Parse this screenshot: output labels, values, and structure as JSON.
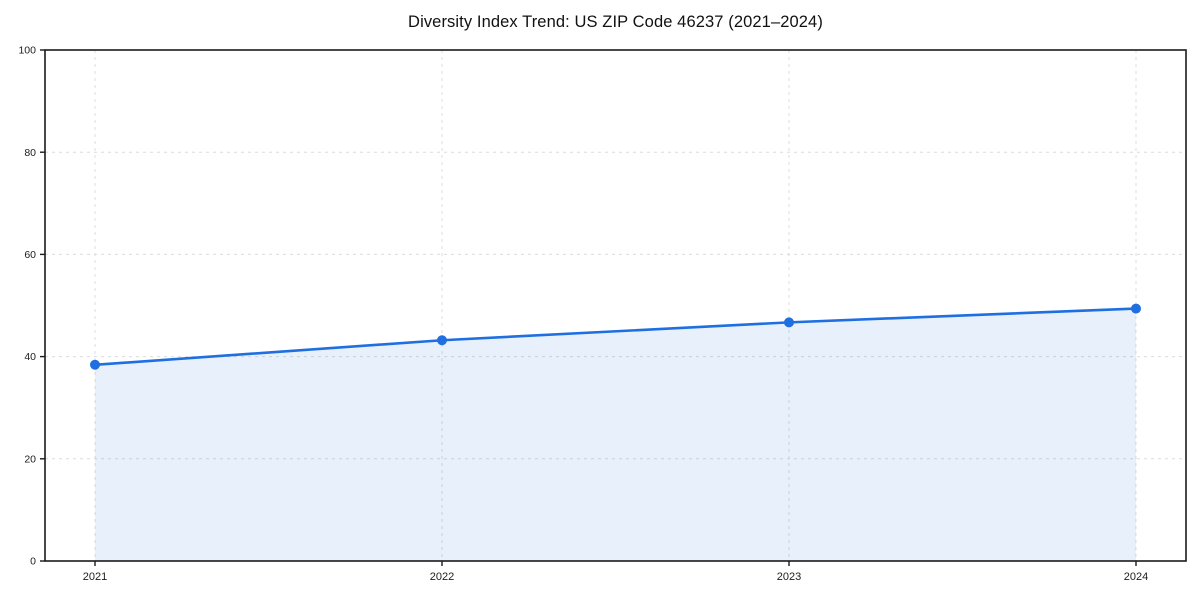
{
  "chart_data": {
    "type": "line",
    "title": "Diversity Index Trend: US ZIP Code 46237 (2021–2024)",
    "x": [
      "2021",
      "2022",
      "2023",
      "2024"
    ],
    "series": [
      {
        "name": "Diversity Index",
        "values": [
          38.4,
          43.2,
          46.7,
          49.4
        ]
      }
    ],
    "xlabel": "",
    "ylabel": "",
    "ylim": [
      0,
      100
    ],
    "yticks": [
      0,
      20,
      40,
      60,
      80,
      100
    ],
    "grid": true,
    "grid_style": "dashed",
    "legend": false,
    "marker": "circle",
    "colors": {
      "line": "#1f6fe0",
      "marker": "#1f6fe0",
      "area_fill": "rgba(31,111,224,0.10)",
      "gridline": "#dcdcdc",
      "frame": "#1a1a1a",
      "tick_label": "#1c1c1c",
      "title": "#111111"
    }
  }
}
